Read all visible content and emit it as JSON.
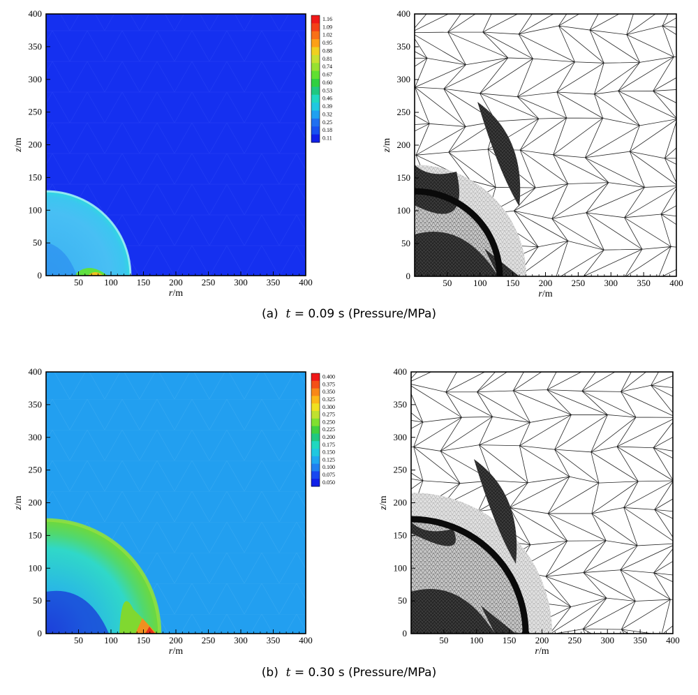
{
  "captions": [
    {
      "label": "(a)",
      "var": "t",
      "eq": " = 0.09 s (Pressure/MPa)"
    },
    {
      "label": "(b)",
      "var": "t",
      "eq": " = 0.30 s (Pressure/MPa)"
    }
  ],
  "chart_data": [
    {
      "type": "heatmap",
      "panel": "a-left",
      "description": "Pressure contour, expanding hemispherical shock front",
      "xlabel_var": "r",
      "xlabel_unit": "/m",
      "ylabel_var": "z",
      "ylabel_unit": "/m",
      "xlim": [
        0,
        400
      ],
      "ylim": [
        0,
        400
      ],
      "xticks": [
        50,
        100,
        150,
        200,
        250,
        300,
        350,
        400
      ],
      "yticks": [
        0,
        50,
        100,
        150,
        200,
        250,
        300,
        350,
        400
      ],
      "front_radius": 130,
      "colorbar_levels": [
        "1.16",
        "1.09",
        "1.02",
        "0.95",
        "0.88",
        "0.81",
        "0.74",
        "0.67",
        "0.60",
        "0.53",
        "0.46",
        "0.39",
        "0.32",
        "0.25",
        "0.18",
        "0.11"
      ],
      "background_color": "#1530f0"
    },
    {
      "type": "mesh",
      "panel": "a-right",
      "description": "Adaptive triangular mesh, refined at shock front",
      "xlabel_var": "r",
      "xlabel_unit": "/m",
      "ylabel_var": "z",
      "ylabel_unit": "/m",
      "xlim": [
        0,
        400
      ],
      "ylim": [
        0,
        400
      ],
      "xticks": [
        50,
        100,
        150,
        200,
        250,
        300,
        350,
        400
      ],
      "yticks": [
        0,
        50,
        100,
        150,
        200,
        250,
        300,
        350,
        400
      ],
      "front_radius": 130
    },
    {
      "type": "heatmap",
      "panel": "b-left",
      "description": "Pressure contour, expanding hemispherical shock front",
      "xlabel_var": "r",
      "xlabel_unit": "/m",
      "ylabel_var": "z",
      "ylabel_unit": "/m",
      "xlim": [
        0,
        400
      ],
      "ylim": [
        0,
        400
      ],
      "xticks": [
        50,
        100,
        150,
        200,
        250,
        300,
        350,
        400
      ],
      "yticks": [
        0,
        50,
        100,
        150,
        200,
        250,
        300,
        350,
        400
      ],
      "front_radius": 175,
      "colorbar_levels": [
        "0.400",
        "0.375",
        "0.350",
        "0.325",
        "0.300",
        "0.275",
        "0.250",
        "0.225",
        "0.200",
        "0.175",
        "0.150",
        "0.125",
        "0.100",
        "0.075",
        "0.050"
      ],
      "background_color": "#229ff0"
    },
    {
      "type": "mesh",
      "panel": "b-right",
      "description": "Adaptive triangular mesh, refined at shock front",
      "xlabel_var": "r",
      "xlabel_unit": "/m",
      "ylabel_var": "z",
      "ylabel_unit": "/m",
      "xlim": [
        0,
        400
      ],
      "ylim": [
        0,
        400
      ],
      "xticks": [
        50,
        100,
        150,
        200,
        250,
        300,
        350,
        400
      ],
      "yticks": [
        0,
        50,
        100,
        150,
        200,
        250,
        300,
        350,
        400
      ],
      "front_radius": 175
    }
  ],
  "colors": {
    "cbar_a": [
      "#f01818",
      "#f44018",
      "#f87018",
      "#fca018",
      "#f0d020",
      "#c8e030",
      "#98e030",
      "#60e030",
      "#30d040",
      "#20c880",
      "#20d8c0",
      "#20c8e0",
      "#20a0f0",
      "#2070f0",
      "#1850f0",
      "#1020e8"
    ],
    "cbar_b": [
      "#f01818",
      "#f45018",
      "#f88818",
      "#fcb818",
      "#f0e020",
      "#c0e030",
      "#80e030",
      "#40d040",
      "#20c880",
      "#20d8c0",
      "#20c8e0",
      "#20a8f0",
      "#2080f0",
      "#1848f0",
      "#1020e8"
    ]
  }
}
